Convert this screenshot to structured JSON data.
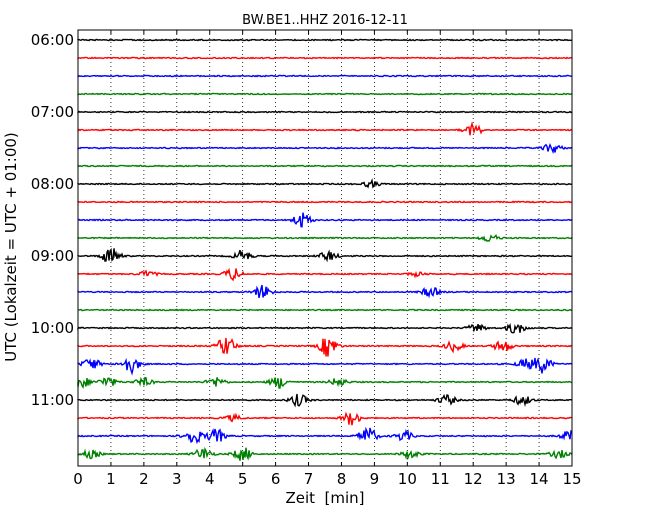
{
  "chart_data": {
    "type": "line",
    "title": "BW.BE1..HHZ 2016-12-11",
    "xlabel": "Zeit  [min]",
    "ylabel": "UTC (Lokalzeit = UTC + 01:00)",
    "xlim": [
      0,
      15
    ],
    "x_ticks": [
      "0",
      "1",
      "2",
      "3",
      "4",
      "5",
      "6",
      "7",
      "8",
      "9",
      "10",
      "11",
      "12",
      "13",
      "14",
      "15"
    ],
    "y_ticks": [
      "06:00",
      "07:00",
      "08:00",
      "09:00",
      "10:00",
      "11:00"
    ],
    "grid": "vertical dotted",
    "colors": [
      "#000000",
      "#ff0000",
      "#0000ff",
      "#008000"
    ],
    "traces": [
      {
        "start": "06:00",
        "color": "#000000",
        "events": []
      },
      {
        "start": "06:15",
        "color": "#ff0000",
        "events": []
      },
      {
        "start": "06:30",
        "color": "#0000ff",
        "events": []
      },
      {
        "start": "06:45",
        "color": "#008000",
        "events": []
      },
      {
        "start": "07:00",
        "color": "#000000",
        "events": []
      },
      {
        "start": "07:15",
        "color": "#ff0000",
        "events": [
          {
            "t": 12.0,
            "amp": 6
          }
        ]
      },
      {
        "start": "07:30",
        "color": "#0000ff",
        "events": [
          {
            "t": 14.4,
            "amp": 5
          }
        ]
      },
      {
        "start": "07:45",
        "color": "#008000",
        "events": []
      },
      {
        "start": "08:00",
        "color": "#000000",
        "events": [
          {
            "t": 8.9,
            "amp": 3
          }
        ]
      },
      {
        "start": "08:15",
        "color": "#ff0000",
        "events": []
      },
      {
        "start": "08:30",
        "color": "#0000ff",
        "events": [
          {
            "t": 6.8,
            "amp": 8
          }
        ]
      },
      {
        "start": "08:45",
        "color": "#008000",
        "events": [
          {
            "t": 12.5,
            "amp": 4
          }
        ]
      },
      {
        "start": "09:00",
        "color": "#000000",
        "events": [
          {
            "t": 1.0,
            "amp": 9
          },
          {
            "t": 5.0,
            "amp": 6
          },
          {
            "t": 7.6,
            "amp": 5
          }
        ]
      },
      {
        "start": "09:15",
        "color": "#ff0000",
        "events": [
          {
            "t": 2.1,
            "amp": 3
          },
          {
            "t": 4.7,
            "amp": 6
          },
          {
            "t": 10.3,
            "amp": 2
          }
        ]
      },
      {
        "start": "09:30",
        "color": "#0000ff",
        "events": [
          {
            "t": 5.6,
            "amp": 7
          },
          {
            "t": 10.7,
            "amp": 5
          }
        ]
      },
      {
        "start": "09:45",
        "color": "#008000",
        "events": []
      },
      {
        "start": "10:00",
        "color": "#000000",
        "events": [
          {
            "t": 12.1,
            "amp": 4
          },
          {
            "t": 13.3,
            "amp": 6
          }
        ]
      },
      {
        "start": "10:15",
        "color": "#ff0000",
        "events": [
          {
            "t": 4.5,
            "amp": 10
          },
          {
            "t": 7.6,
            "amp": 11
          },
          {
            "t": 11.4,
            "amp": 5
          },
          {
            "t": 12.9,
            "amp": 6
          }
        ]
      },
      {
        "start": "10:30",
        "color": "#0000ff",
        "events": [
          {
            "t": 0.4,
            "amp": 6
          },
          {
            "t": 1.6,
            "amp": 9
          },
          {
            "t": 13.6,
            "amp": 5
          },
          {
            "t": 14.1,
            "amp": 9
          }
        ]
      },
      {
        "start": "10:45",
        "color": "#008000",
        "events": [
          {
            "t": 0.1,
            "amp": 6
          },
          {
            "t": 0.9,
            "amp": 5
          },
          {
            "t": 2.0,
            "amp": 4
          },
          {
            "t": 4.2,
            "amp": 5
          },
          {
            "t": 6.1,
            "amp": 6
          },
          {
            "t": 7.9,
            "amp": 4
          }
        ]
      },
      {
        "start": "11:00",
        "color": "#000000",
        "events": [
          {
            "t": 6.7,
            "amp": 6
          },
          {
            "t": 11.2,
            "amp": 5
          },
          {
            "t": 13.5,
            "amp": 5
          }
        ]
      },
      {
        "start": "11:15",
        "color": "#ff0000",
        "events": [
          {
            "t": 4.7,
            "amp": 3
          },
          {
            "t": 8.3,
            "amp": 7
          }
        ]
      },
      {
        "start": "11:30",
        "color": "#0000ff",
        "events": [
          {
            "t": 3.5,
            "amp": 8
          },
          {
            "t": 4.2,
            "amp": 7
          },
          {
            "t": 8.8,
            "amp": 9
          },
          {
            "t": 9.9,
            "amp": 5
          },
          {
            "t": 14.9,
            "amp": 5
          }
        ]
      },
      {
        "start": "11:45",
        "color": "#008000",
        "events": [
          {
            "t": 0.4,
            "amp": 4
          },
          {
            "t": 3.8,
            "amp": 6
          },
          {
            "t": 5.0,
            "amp": 7
          },
          {
            "t": 10.1,
            "amp": 4
          },
          {
            "t": 14.6,
            "amp": 4
          }
        ]
      }
    ]
  }
}
